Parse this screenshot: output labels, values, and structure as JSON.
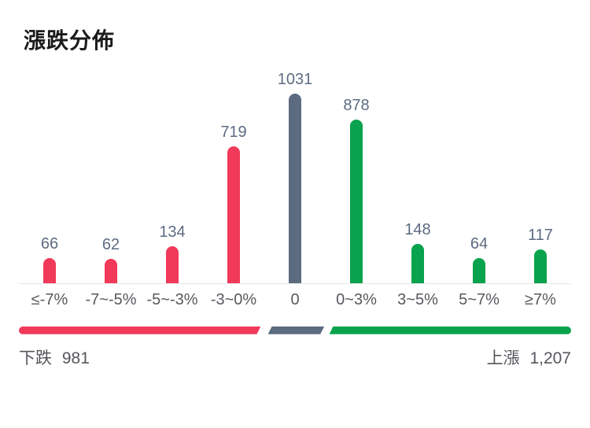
{
  "title": "漲跌分佈",
  "chart_data": {
    "type": "bar",
    "title": "漲跌分佈",
    "categories": [
      "≤-7%",
      "-7~-5%",
      "-5~-3%",
      "-3~0%",
      "0",
      "0~3%",
      "3~5%",
      "5~7%",
      "≥7%"
    ],
    "values": [
      66,
      62,
      134,
      719,
      1031,
      878,
      148,
      64,
      117
    ],
    "value_labels": [
      "66",
      "62",
      "134",
      "719",
      "1031",
      "878",
      "148",
      "64",
      "117"
    ],
    "bar_roles": [
      "down",
      "down",
      "down",
      "down",
      "flat",
      "up",
      "up",
      "up",
      "up"
    ],
    "colors": {
      "down": "#f1395a",
      "flat": "#5c6b80",
      "up": "#09a24d"
    },
    "xlabel": "",
    "ylabel": "",
    "ylim": [
      0,
      1031
    ],
    "grid": false,
    "legend": false
  },
  "summary": {
    "down": {
      "label": "下跌",
      "value": "981"
    },
    "up": {
      "label": "上漲",
      "value": "1,207"
    },
    "meter_segments": [
      {
        "role": "down",
        "left_pct": 0,
        "width_pct": 43.8
      },
      {
        "role": "flat",
        "left_pct": 45.1,
        "width_pct": 10.2
      },
      {
        "role": "up",
        "left_pct": 56.2,
        "width_pct": 43.8
      }
    ]
  }
}
